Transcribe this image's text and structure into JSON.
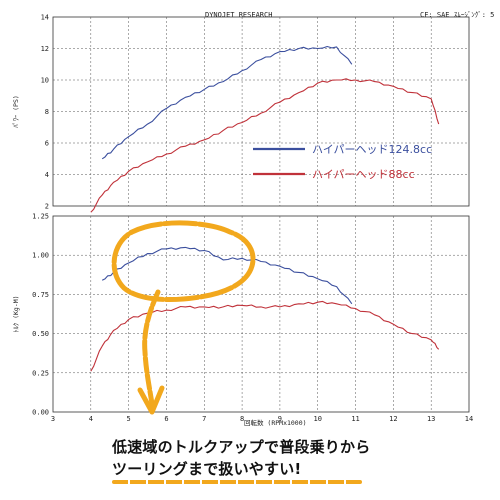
{
  "header": {
    "left": "DYNOJET  RESEARCH",
    "right": "CF: SAE   ｽﾑｰｼﾞﾝｸﾞ: 5"
  },
  "colors": {
    "series_124": "#3b4f9e",
    "series_88": "#c0323a",
    "highlight": "#f2a81d",
    "grid": "#555555"
  },
  "chart_data": [
    {
      "type": "line",
      "ylabel": "ﾊﾟﾜｰ (PS)",
      "ylim": [
        2,
        14
      ],
      "yticks": [
        "2",
        "4",
        "6",
        "8",
        "10",
        "12",
        "14"
      ],
      "series": [
        {
          "name": "ハイパーヘッド124.8cc",
          "x": [
            4.3,
            4.6,
            5.0,
            5.5,
            6.0,
            6.5,
            7.0,
            7.5,
            8.0,
            8.5,
            9.0,
            9.5,
            10.0,
            10.5,
            10.9
          ],
          "y": [
            5.0,
            5.6,
            6.4,
            7.2,
            8.2,
            8.9,
            9.4,
            9.9,
            10.6,
            11.3,
            11.8,
            12.0,
            12.0,
            12.1,
            11.0
          ]
        },
        {
          "name": "ハイパーヘッド88cc",
          "x": [
            4.0,
            4.3,
            4.6,
            5.0,
            5.5,
            6.0,
            6.5,
            7.0,
            7.5,
            8.0,
            8.5,
            9.0,
            9.5,
            10.0,
            10.5,
            11.0,
            11.5,
            12.0,
            12.5,
            13.0,
            13.2
          ],
          "y": [
            1.6,
            2.7,
            3.5,
            4.2,
            4.8,
            5.3,
            5.8,
            6.2,
            6.8,
            7.3,
            7.9,
            8.6,
            9.2,
            9.8,
            10.0,
            10.0,
            9.9,
            9.6,
            9.2,
            8.8,
            7.2
          ]
        }
      ]
    },
    {
      "type": "line",
      "ylabel": "ﾄﾙｸ (Kg-M)",
      "ylim": [
        0.0,
        1.25
      ],
      "yticks": [
        "0.00",
        "0.25",
        "0.50",
        "0.75",
        "1.00",
        "1.25"
      ],
      "series": [
        {
          "name": "ハイパーヘッド124.8cc",
          "x": [
            4.3,
            4.6,
            5.0,
            5.5,
            6.0,
            6.5,
            7.0,
            7.5,
            8.0,
            8.5,
            9.0,
            9.5,
            10.0,
            10.5,
            10.9
          ],
          "y": [
            0.84,
            0.89,
            0.95,
            1.01,
            1.04,
            1.05,
            1.03,
            0.97,
            0.98,
            0.96,
            0.93,
            0.89,
            0.85,
            0.8,
            0.69
          ]
        },
        {
          "name": "ハイパーヘッド88cc",
          "x": [
            4.0,
            4.3,
            4.6,
            5.0,
            5.5,
            6.0,
            6.5,
            7.0,
            7.5,
            8.0,
            8.5,
            9.0,
            9.5,
            10.0,
            10.5,
            11.0,
            11.5,
            12.0,
            12.5,
            13.0,
            13.2
          ],
          "y": [
            0.26,
            0.42,
            0.52,
            0.59,
            0.63,
            0.65,
            0.67,
            0.67,
            0.67,
            0.68,
            0.67,
            0.67,
            0.69,
            0.7,
            0.69,
            0.66,
            0.62,
            0.56,
            0.5,
            0.46,
            0.4
          ]
        }
      ]
    }
  ],
  "x_axis": {
    "xlim": [
      3,
      14
    ],
    "ticks": [
      "3",
      "4",
      "5",
      "6",
      "7",
      "8",
      "9",
      "10",
      "11",
      "12",
      "13",
      "14"
    ],
    "label": "回転数  (RPMx1000)"
  },
  "legend": [
    {
      "label": "ハイパーヘッド124.8cc",
      "color": "#3b4f9e"
    },
    {
      "label": "ハイパーヘッド88cc",
      "color": "#c0323a"
    }
  ],
  "caption": {
    "line1": "低速域のトルクアップで普段乗りから",
    "line2": "ツーリングまで扱いやすい!"
  }
}
